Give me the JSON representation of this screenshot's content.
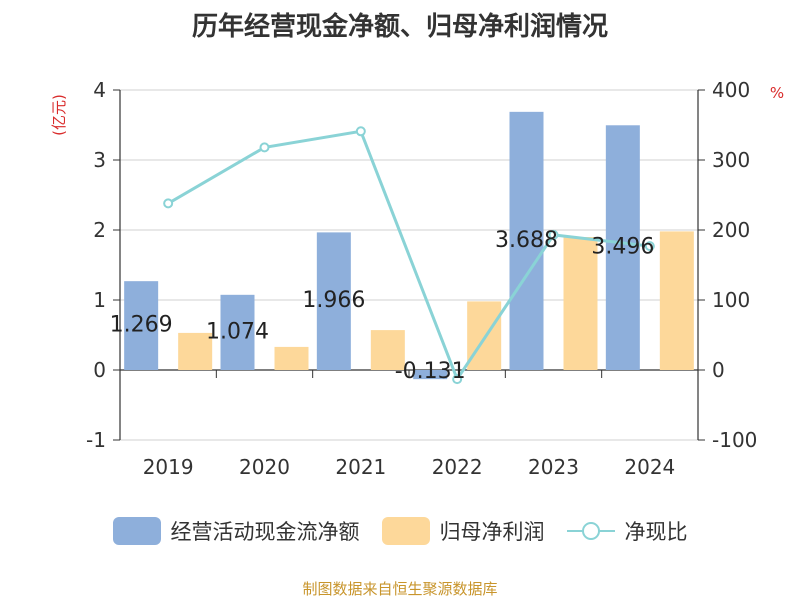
{
  "title": "历年经营现金净额、归母净利润情况",
  "source": "制图数据来自恒生聚源数据库",
  "legend": {
    "cash_flow": "经营活动现金流净额",
    "net_profit": "归母净利润",
    "ratio": "净现比"
  },
  "colors": {
    "cash_flow": "#8eafdb",
    "net_profit": "#fdd89a",
    "ratio": "#8ad3d6",
    "unit_label": "#d92b2b"
  },
  "chart_data": {
    "type": "bar",
    "title": "历年经营现金净额、归母净利润情况",
    "categories": [
      "2019",
      "2020",
      "2021",
      "2022",
      "2023",
      "2024"
    ],
    "series": [
      {
        "name": "经营活动现金流净额",
        "type": "bar",
        "axis": "left",
        "values": [
          1.269,
          1.074,
          1.966,
          -0.131,
          3.688,
          3.496
        ],
        "labels": [
          "1.269",
          "1.074",
          "1.966",
          "-0.131",
          "3.688",
          "3.496"
        ]
      },
      {
        "name": "归母净利润",
        "type": "bar",
        "axis": "left",
        "values": [
          0.53,
          0.33,
          0.57,
          0.98,
          1.9,
          1.98
        ]
      },
      {
        "name": "净现比",
        "type": "line",
        "axis": "right",
        "values": [
          238,
          318,
          341,
          -13,
          193,
          177
        ]
      }
    ],
    "ylabel": "(亿元)",
    "y2label": "%",
    "ylim": [
      -1,
      4
    ],
    "y2lim": [
      -100,
      400
    ],
    "yticks": [
      "-1",
      "0",
      "1",
      "2",
      "3",
      "4"
    ],
    "y2ticks": [
      "-100",
      "0",
      "100",
      "200",
      "300",
      "400"
    ],
    "grid": true,
    "legend_position": "bottom"
  }
}
